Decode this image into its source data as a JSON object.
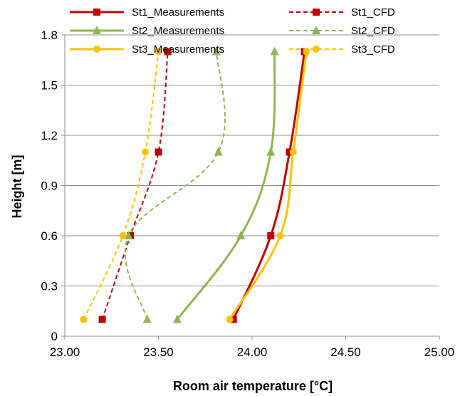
{
  "chart_data": {
    "type": "line",
    "xlabel": "Room air temperature [°C]",
    "ylabel": "Height [m]",
    "xlim": [
      23.0,
      25.0
    ],
    "ylim": [
      0,
      1.8
    ],
    "xticks": [
      "23.00",
      "23.50",
      "24.00",
      "24.50",
      "25.00"
    ],
    "yticks": [
      "0",
      "0.3",
      "0.6",
      "0.9",
      "1.2",
      "1.5",
      "1.8"
    ],
    "grid": "horizontal",
    "legend_position": "top",
    "series": [
      {
        "name": "St1_Measurements",
        "color": "#C00000",
        "style": "solid",
        "marker": "square",
        "points": [
          [
            23.9,
            0.1
          ],
          [
            24.1,
            0.6
          ],
          [
            24.2,
            1.1
          ],
          [
            24.28,
            1.7
          ]
        ]
      },
      {
        "name": "St1_CFD",
        "color": "#C00000",
        "style": "dashed",
        "marker": "square",
        "points": [
          [
            23.2,
            0.1
          ],
          [
            23.35,
            0.6
          ],
          [
            23.5,
            1.1
          ],
          [
            23.55,
            1.7
          ]
        ]
      },
      {
        "name": "St2_Measurements",
        "color": "#8DB64E",
        "style": "solid",
        "marker": "triangle",
        "points": [
          [
            23.6,
            0.1
          ],
          [
            23.94,
            0.6
          ],
          [
            24.1,
            1.1
          ],
          [
            24.12,
            1.7
          ]
        ]
      },
      {
        "name": "St2_CFD",
        "color": "#8DB64E",
        "style": "dashed",
        "marker": "triangle",
        "points": [
          [
            23.44,
            0.1
          ],
          [
            23.34,
            0.6
          ],
          [
            23.82,
            1.1
          ],
          [
            23.81,
            1.7
          ]
        ]
      },
      {
        "name": "St3_Measurements",
        "color": "#FFC000",
        "style": "solid",
        "marker": "circle",
        "points": [
          [
            23.88,
            0.1
          ],
          [
            24.15,
            0.6
          ],
          [
            24.22,
            1.1
          ],
          [
            24.29,
            1.7
          ]
        ]
      },
      {
        "name": "St3_CFD",
        "color": "#FFC000",
        "style": "dashed",
        "marker": "circle",
        "points": [
          [
            23.1,
            0.1
          ],
          [
            23.31,
            0.6
          ],
          [
            23.43,
            1.1
          ],
          [
            23.5,
            1.7
          ]
        ]
      }
    ]
  }
}
